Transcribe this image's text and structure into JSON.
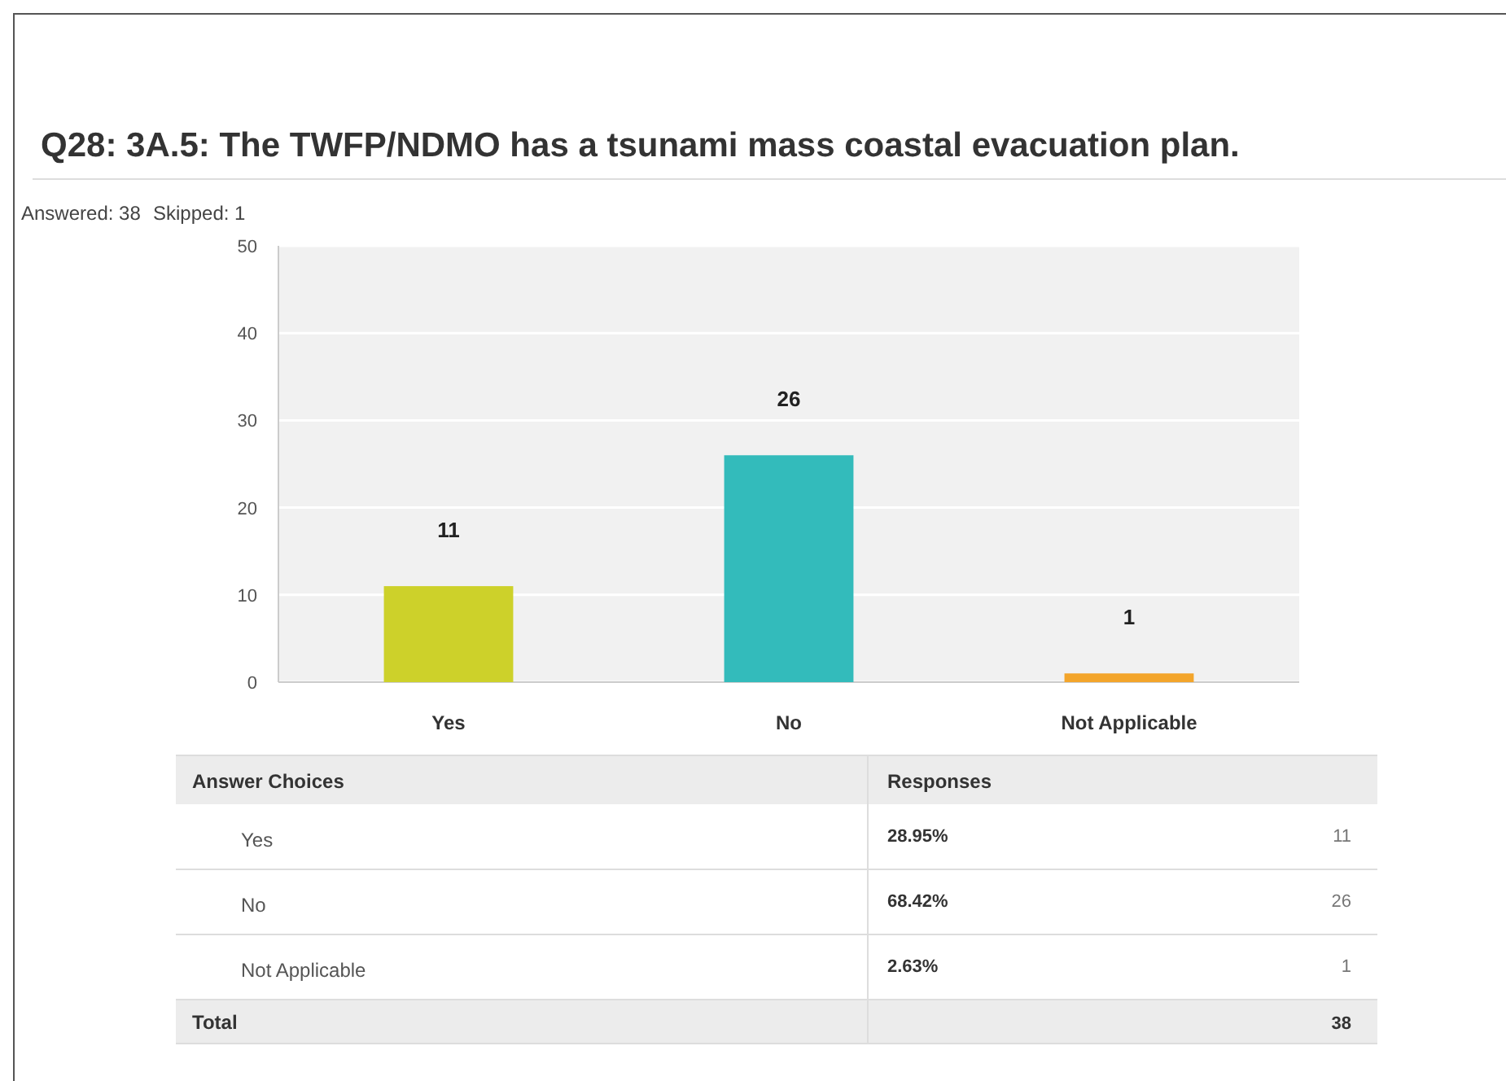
{
  "chart_data": {
    "type": "bar",
    "title": "Q28: 3A.5: The TWFP/NDMO has a tsunami mass coastal evacuation plan.",
    "categories": [
      "Yes",
      "No",
      "Not Applicable"
    ],
    "values": [
      11,
      26,
      1
    ],
    "colors": [
      "#cdd12a",
      "#33bbbb",
      "#f3a52b"
    ],
    "ylim": [
      0,
      50
    ],
    "yticks": [
      0,
      10,
      20,
      30,
      40,
      50
    ],
    "grid": "y",
    "data_labels": true,
    "annotations": [
      "Answered: 38",
      "Skipped: 1",
      "Answer Choices",
      "Responses",
      "28.95%",
      "68.42%",
      "2.63%",
      "Total",
      "38",
      "11",
      "26",
      "1"
    ]
  }
}
